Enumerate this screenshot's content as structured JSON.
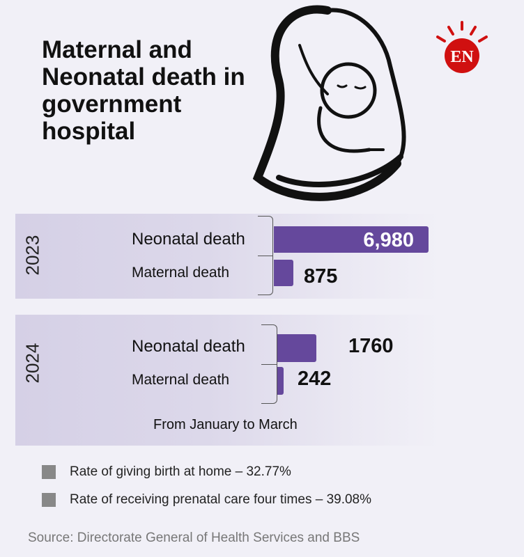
{
  "title": "Maternal and Neonatal death in government hospital",
  "logo_text": "EN",
  "colors": {
    "bar": "#65489c",
    "logo": "#d01010"
  },
  "chart_data": {
    "type": "bar",
    "orientation": "horizontal",
    "groups": [
      {
        "year": "2023",
        "items": [
          {
            "label": "Neonatal death",
            "value": 6980,
            "display": "6,980"
          },
          {
            "label": "Maternal death",
            "value": 875,
            "display": "875"
          }
        ]
      },
      {
        "year": "2024",
        "items": [
          {
            "label": "Neonatal death",
            "value": 1760,
            "display": "1760"
          },
          {
            "label": "Maternal death",
            "value": 242,
            "display": "242"
          }
        ]
      }
    ],
    "note": "From January to March"
  },
  "legend": [
    "Rate of giving birth at home – 32.77%",
    "Rate of receiving prenatal care four times – 39.08%"
  ],
  "source": "Source: Directorate General of Health Services and BBS"
}
